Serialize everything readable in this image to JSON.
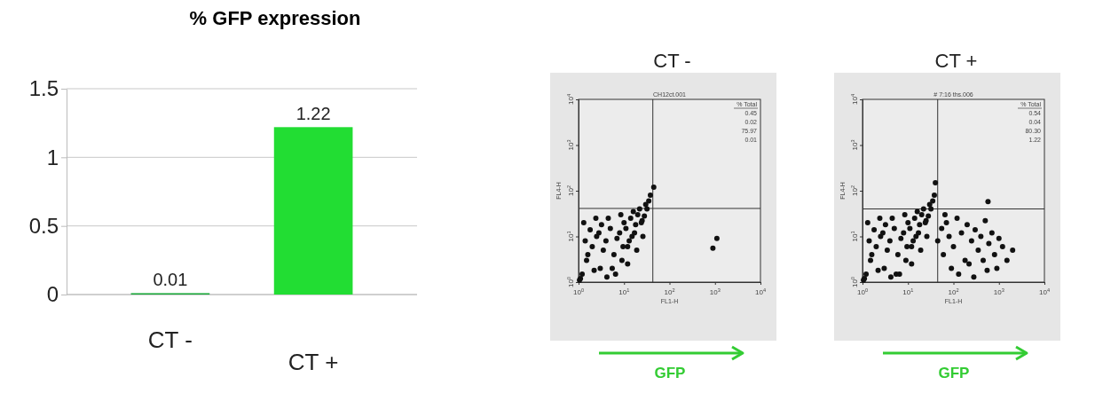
{
  "chart_data": [
    {
      "type": "bar",
      "title": "% GFP expression",
      "categories": [
        "CT -",
        "CT +"
      ],
      "values": [
        0.01,
        1.22
      ],
      "colors": [
        "#1aa83a",
        "#22dd33"
      ],
      "ylim": [
        0,
        1.5
      ],
      "yticks": [
        0,
        0.5,
        1,
        1.5
      ],
      "grid": "y",
      "data_labels": true
    },
    {
      "type": "scatter",
      "title": "CT -",
      "xlabel": "FL1-H",
      "ylabel": "FL4-H",
      "log": "xy",
      "marker": "circle",
      "xlim": [
        1,
        10000
      ],
      "ylim": [
        1,
        10000
      ],
      "xticks": [
        {
          "value": 1,
          "label": "10$^{0}$"
        },
        {
          "value": 10,
          "label": "10$^{1}$"
        },
        {
          "value": 100,
          "label": "10$^{2}$"
        },
        {
          "value": 1000,
          "label": "10$^{3}$"
        },
        {
          "value": 10000,
          "label": "10$^{4}$"
        }
      ],
      "yticks": [
        {
          "value": 1,
          "label": "10$^{0}$"
        },
        {
          "value": 10,
          "label": "10$^{1}$"
        },
        {
          "value": 100,
          "label": "10$^{2}$"
        },
        {
          "value": 1000,
          "label": "10$^{3}$"
        },
        {
          "value": 10000,
          "label": "10$^{4}$"
        }
      ],
      "ref_lines": [
        {
          "axis": "x",
          "value": 43,
          "color": "#333333"
        },
        {
          "axis": "y",
          "value": 41,
          "color": "#333333"
        }
      ],
      "annotations": [
        "CH12ct.001",
        "% Total",
        "0.45",
        "0.02",
        "75.97",
        "0.01",
        "GFP"
      ],
      "series": [
        {
          "color": "#111111",
          "x": [
            1.2,
            1.5,
            2,
            2.5,
            3,
            4,
            5,
            6,
            8,
            10,
            12,
            15,
            1.1,
            1.3,
            1.8,
            2.2,
            3.5,
            4.5,
            7,
            9,
            11,
            14,
            18,
            20,
            25,
            1.4,
            2.8,
            5.5,
            13,
            16,
            22,
            28,
            30,
            35,
            1.6,
            3.2,
            6.5,
            9.5,
            17,
            24,
            1.05,
            2.4,
            4.2,
            8.5,
            12,
            19,
            26,
            32,
            38,
            1100,
            900,
            45
          ],
          "values": [
            1.5,
            3,
            6,
            10,
            2,
            8,
            15,
            4,
            12,
            20,
            6,
            10,
            1.2,
            20,
            14,
            1.8,
            5,
            25,
            9,
            3,
            15,
            25,
            18,
            30,
            22,
            8,
            12,
            2,
            8,
            35,
            40,
            28,
            50,
            60,
            4,
            18,
            1.5,
            6,
            12,
            20,
            1.1,
            25,
            1.3,
            30,
            2.5,
            5,
            10,
            40,
            80,
            9,
            5.5,
            120
          ]
        }
      ]
    },
    {
      "type": "scatter",
      "title": "CT +",
      "xlabel": "FL1-H",
      "ylabel": "FL4-H",
      "log": "xy",
      "marker": "circle",
      "xlim": [
        1,
        10000
      ],
      "ylim": [
        1,
        10000
      ],
      "xticks": [
        {
          "value": 1,
          "label": "10$^{0}$"
        },
        {
          "value": 10,
          "label": "10$^{1}$"
        },
        {
          "value": 100,
          "label": "10$^{2}$"
        },
        {
          "value": 1000,
          "label": "10$^{3}$"
        },
        {
          "value": 10000,
          "label": "10$^{4}$"
        }
      ],
      "yticks": [
        {
          "value": 1,
          "label": "10$^{0}$"
        },
        {
          "value": 10,
          "label": "10$^{1}$"
        },
        {
          "value": 100,
          "label": "10$^{2}$"
        },
        {
          "value": 1000,
          "label": "10$^{3}$"
        },
        {
          "value": 10000,
          "label": "10$^{4}$"
        }
      ],
      "ref_lines": [
        {
          "axis": "x",
          "value": 45,
          "color": "#333333"
        },
        {
          "axis": "y",
          "value": 40,
          "color": "#333333"
        }
      ],
      "annotations": [
        "# 7:16 ths.006",
        "% Total",
        "0.54",
        "0.04",
        "80.30",
        "1.22",
        "GFP"
      ],
      "series": [
        {
          "color": "#111111",
          "x": [
            1.2,
            1.5,
            2,
            2.5,
            3,
            4,
            5,
            6,
            8,
            10,
            12,
            15,
            1.1,
            1.3,
            1.8,
            2.2,
            3.5,
            4.5,
            7,
            9,
            11,
            14,
            18,
            20,
            25,
            1.4,
            2.8,
            5.5,
            13,
            16,
            22,
            28,
            30,
            35,
            1.6,
            3.2,
            6.5,
            9.5,
            17,
            24,
            1.05,
            2.4,
            4.2,
            8.5,
            12,
            19,
            26,
            32,
            38,
            45,
            55,
            60,
            70,
            80,
            100,
            120,
            150,
            180,
            200,
            250,
            300,
            350,
            400,
            500,
            600,
            700,
            800,
            1000,
            1200,
            1500,
            2000,
            65,
            90,
            130,
            220,
            280,
            450,
            550,
            900,
            575,
            40
          ],
          "values": [
            1.5,
            3,
            6,
            10,
            2,
            8,
            15,
            4,
            12,
            20,
            6,
            10,
            1.2,
            20,
            14,
            1.8,
            5,
            25,
            9,
            3,
            15,
            25,
            18,
            30,
            22,
            8,
            12,
            1.5,
            8,
            35,
            40,
            28,
            50,
            60,
            4,
            18,
            1.5,
            6,
            12,
            20,
            1.1,
            25,
            1.3,
            30,
            2.5,
            5,
            10,
            40,
            80,
            8,
            15,
            4,
            20,
            10,
            6,
            25,
            12,
            3,
            18,
            8,
            14,
            5,
            10,
            22,
            7,
            12,
            4,
            9,
            6,
            3,
            5,
            30,
            2,
            1.5,
            2.5,
            1.3,
            3,
            1.8,
            2,
            58,
            150
          ]
        }
      ]
    }
  ]
}
